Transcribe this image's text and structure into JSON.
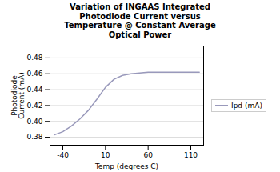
{
  "chart_data": {
    "type": "line",
    "title": "Variation of INGAAS Integrated\nPhotodiode Current versus\nTemperature @ Constant Average\nOptical Power",
    "x_label": "Temp (degrees C)",
    "y_label": "Photodiode\nCurrent (mA)",
    "x": [
      -50,
      -40,
      -30,
      -20,
      -10,
      0,
      10,
      20,
      30,
      40,
      50,
      60,
      70,
      80,
      90,
      100,
      110,
      120
    ],
    "series": [
      {
        "name": "Ipd (mA)",
        "color": "#9999bb",
        "values": [
          0.383,
          0.387,
          0.394,
          0.403,
          0.414,
          0.428,
          0.443,
          0.453,
          0.458,
          0.46,
          0.461,
          0.462,
          0.462,
          0.462,
          0.462,
          0.462,
          0.462,
          0.462
        ]
      }
    ],
    "xlim": [
      -55,
      125
    ],
    "xticks": [
      -40,
      10,
      60,
      110
    ],
    "ylim": [
      0.37,
      0.495
    ],
    "yticks": [
      0.38,
      {
        "value": 0.4,
        "label": "0.40"
      },
      0.42,
      0.44,
      0.46,
      0.48
    ],
    "grid": true,
    "legend": "right"
  }
}
